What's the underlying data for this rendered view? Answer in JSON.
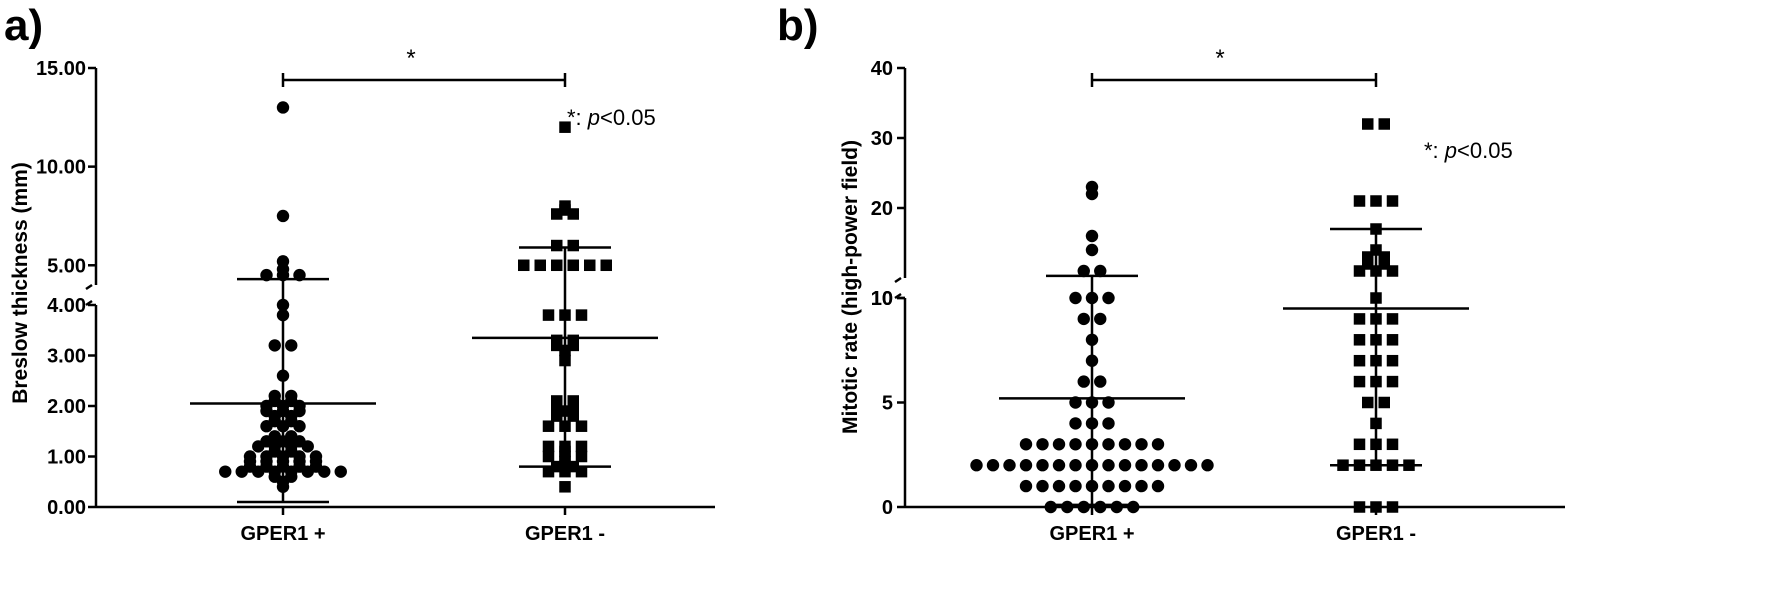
{
  "chart_data": [
    {
      "panel": "a)",
      "type": "scatter",
      "ylabel": "Breslow thickness (mm)",
      "categories": [
        "GPER1 +",
        "GPER1 -"
      ],
      "y_axis_lower": {
        "range": [
          0,
          4
        ],
        "ticks": [
          "0.00",
          "1.00",
          "2.00",
          "3.00",
          "4.00"
        ]
      },
      "y_axis_upper": {
        "range": [
          4,
          15
        ],
        "ticks": [
          "5.00",
          "10.00",
          "15.00"
        ]
      },
      "series": [
        {
          "category": "GPER1 +",
          "marker": "circle",
          "values": [
            0.4,
            0.5,
            0.6,
            0.6,
            0.7,
            0.7,
            0.7,
            0.7,
            0.7,
            0.7,
            0.7,
            0.7,
            0.8,
            0.8,
            0.8,
            0.8,
            0.8,
            0.9,
            0.9,
            0.9,
            0.9,
            0.9,
            1.0,
            1.0,
            1.0,
            1.0,
            1.0,
            1.1,
            1.1,
            1.2,
            1.2,
            1.2,
            1.2,
            1.3,
            1.3,
            1.3,
            1.4,
            1.4,
            1.6,
            1.6,
            1.6,
            1.7,
            1.7,
            1.8,
            1.8,
            1.9,
            1.9,
            1.9,
            2.0,
            2.0,
            2.0,
            2.1,
            2.1,
            2.2,
            2.2,
            2.6,
            3.2,
            3.2,
            3.8,
            4.0,
            4.5,
            4.5,
            4.5,
            4.8,
            5.2,
            7.5,
            13.0
          ],
          "mean": 2.05,
          "sd_lower": 0.1,
          "sd_upper": 4.3
        },
        {
          "category": "GPER1 -",
          "marker": "square",
          "values": [
            0.4,
            0.7,
            0.7,
            0.7,
            0.8,
            0.8,
            0.9,
            1.0,
            1.0,
            1.0,
            1.1,
            1.2,
            1.2,
            1.2,
            1.6,
            1.6,
            1.6,
            1.8,
            1.8,
            1.9,
            2.0,
            2.0,
            2.1,
            2.1,
            2.9,
            3.1,
            3.2,
            3.2,
            3.3,
            3.3,
            3.8,
            3.8,
            3.8,
            5.0,
            5.0,
            5.0,
            5.0,
            5.0,
            5.0,
            6.0,
            6.0,
            7.6,
            7.6,
            7.8,
            8.0,
            12.0
          ],
          "mean": 3.35,
          "sd_lower": 0.8,
          "sd_upper": 5.9
        }
      ],
      "significance": {
        "symbol": "*",
        "between": [
          "GPER1 +",
          "GPER1 -"
        ]
      },
      "annotation": {
        "prefix": "*: ",
        "p_symbol": "p",
        "suffix": "<0.05"
      }
    },
    {
      "panel": "b)",
      "type": "scatter",
      "ylabel": "Mitotic rate (high-power field)",
      "categories": [
        "GPER1 +",
        "GPER1 -"
      ],
      "y_axis_lower": {
        "range": [
          0,
          10
        ],
        "ticks": [
          "0",
          "5",
          "10"
        ]
      },
      "y_axis_upper": {
        "range": [
          10,
          40
        ],
        "ticks": [
          "10",
          "20",
          "30",
          "40"
        ]
      },
      "series": [
        {
          "category": "GPER1 +",
          "marker": "circle",
          "values": [
            0,
            0,
            0,
            0,
            0,
            0,
            1,
            1,
            1,
            1,
            1,
            1,
            1,
            1,
            1,
            2,
            2,
            2,
            2,
            2,
            2,
            2,
            2,
            2,
            2,
            2,
            2,
            2,
            2,
            2,
            3,
            3,
            3,
            3,
            3,
            3,
            3,
            3,
            3,
            4,
            4,
            4,
            5,
            5,
            5,
            6,
            6,
            7,
            8,
            9,
            9,
            10,
            10,
            10,
            11,
            11,
            14,
            16,
            22,
            23
          ],
          "mean": 5.2,
          "sd_lower": 0.1,
          "sd_upper": 10.3
        },
        {
          "category": "GPER1 -",
          "marker": "square",
          "values": [
            0,
            0,
            0,
            2,
            2,
            2,
            2,
            2,
            3,
            3,
            3,
            4,
            5,
            5,
            6,
            6,
            6,
            7,
            7,
            7,
            8,
            8,
            8,
            9,
            9,
            9,
            10,
            11,
            11,
            11,
            12,
            12,
            13,
            13,
            14,
            17,
            21,
            21,
            21,
            32,
            32
          ],
          "mean": 9.5,
          "sd_lower": 2.0,
          "sd_upper": 17.0
        }
      ],
      "significance": {
        "symbol": "*",
        "between": [
          "GPER1 +",
          "GPER1 -"
        ]
      },
      "annotation": {
        "prefix": "*: ",
        "p_symbol": "p",
        "suffix": "<0.05"
      }
    }
  ]
}
